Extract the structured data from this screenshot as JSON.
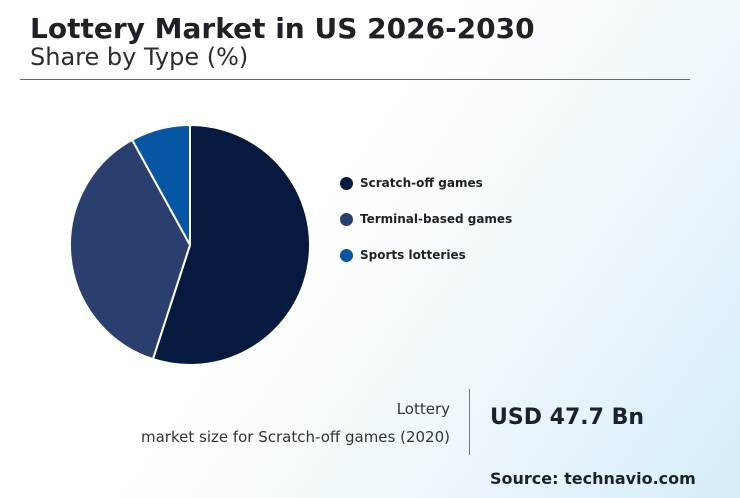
{
  "header": {
    "title": "Lottery Market in US 2026-2030",
    "subtitle": "Share by Type (%)"
  },
  "chart_data": {
    "type": "pie",
    "title": "Lottery Market in US 2026-2030",
    "subtitle": "Share by Type (%)",
    "categories": [
      "Scratch-off games",
      "Terminal-based games",
      "Sports lotteries"
    ],
    "values": [
      55,
      37,
      8
    ],
    "colors": [
      "#061a40",
      "#2a3f6e",
      "#0656a3"
    ],
    "start_angle": "12 o'clock, clockwise",
    "legend_position": "right"
  },
  "kpi": {
    "label_line1": "Lottery",
    "label_line2": "market size for Scratch-off games (2020)",
    "value": "USD 47.7 Bn"
  },
  "source": "Source: technavio.com"
}
